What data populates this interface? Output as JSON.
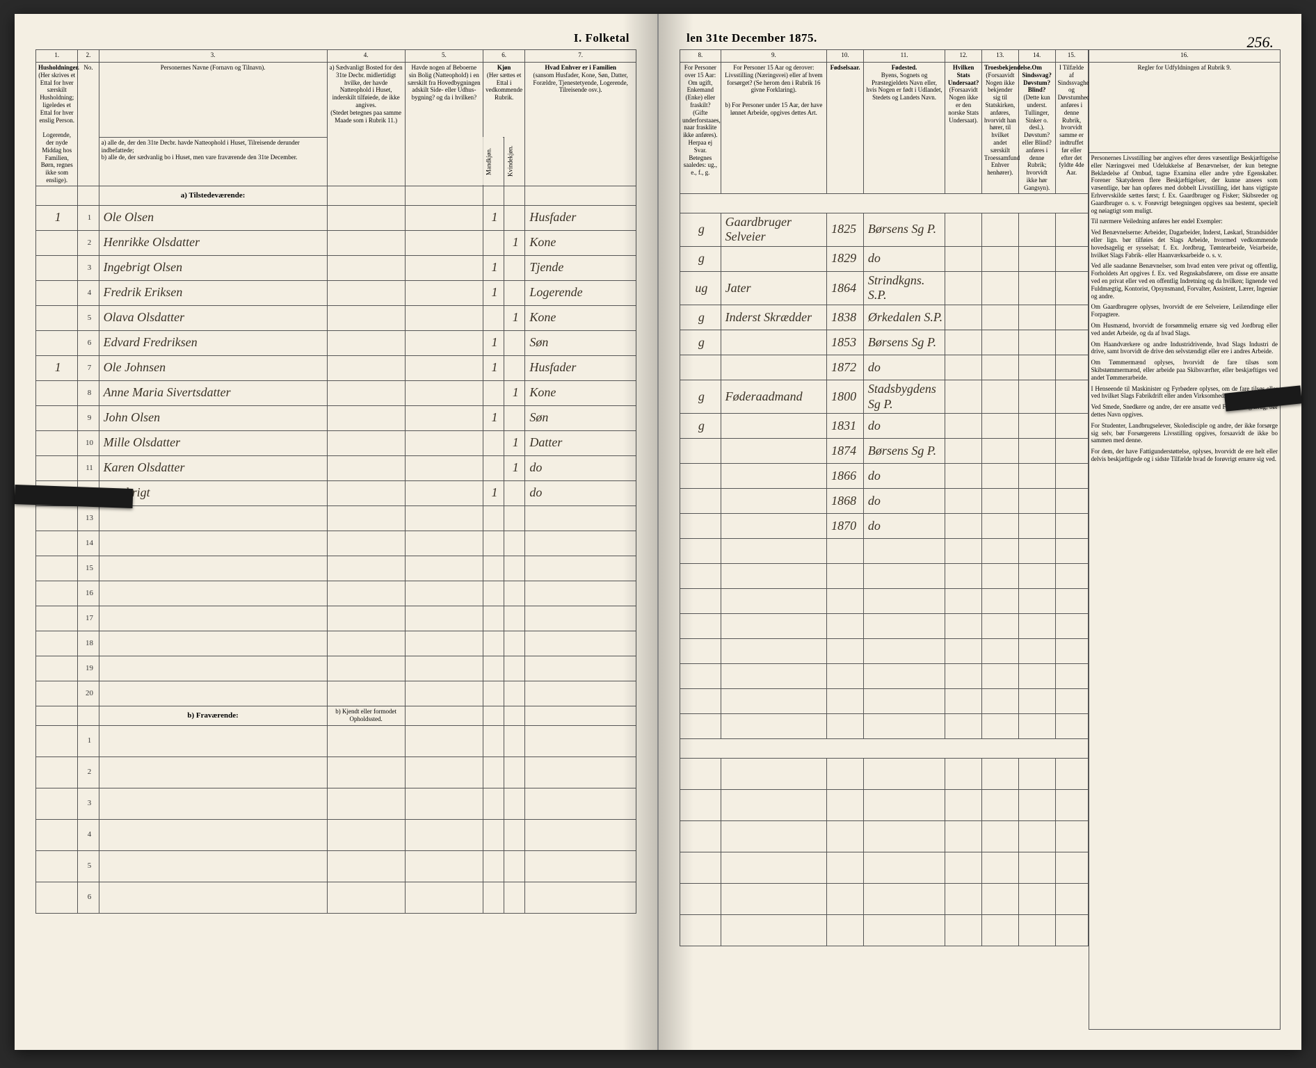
{
  "title_left": "I.  Folketal",
  "title_right": "len 31te December 1875.",
  "page_number": "256.",
  "columns_left": {
    "c1": "1.",
    "c2": "2.",
    "c3": "3.",
    "c4": "4.",
    "c5": "5.",
    "c6": "6.",
    "c7": "7."
  },
  "columns_right": {
    "c8": "8.",
    "c9": "9.",
    "c10": "10.",
    "c11": "11.",
    "c12": "12.",
    "c13": "13.",
    "c14": "14.",
    "c15": "15.",
    "c16": "16."
  },
  "headers_left": {
    "h1": "Husholdninger.",
    "h1_sub": "(Her skrives et Ettal for hver særskilt Husholdning; ligeledes et Ettal for hver enslig Person.",
    "h1_sub2": "Logerende, der nyde Middag hos Familien, Børn, regnes ikke som enslige).",
    "h2": "No.",
    "h3": "Personernes Navne (Fornavn og Tilnavn).",
    "h3_a": "a)  alle de, der den 31te Decbr. havde Natteophold i Huset, Tilreisende derunder indbefattede;",
    "h3_b": "b)  alle de, der sædvanlig bo i Huset, men vare fraværende den 31te December.",
    "h4": "a) Sædvanligt Bosted for den 31te Decbr. midlertidigt",
    "h4_sub": "(Stedet betegnes paa samme Maade som i Rubrik 11.)",
    "h4_sub2": "hvilke, der havde Natteophold i Huset, inderskilt tilføiede, de ikke angives.",
    "h5": "Havde nogen af Beboerne sin Bolig (Natteophold) i en særskilt fra Hovedbygningen adskilt Side- eller Udhus-bygning? og da i hvilken?",
    "h6": "Kjøn",
    "h6_sub": "(Her sættes et Ettal i vedkommende Rubrik.",
    "h6_m": "Mandkjøn.",
    "h6_k": "Kvindekjøn.",
    "h7": "Hvad Enhver er i Familien",
    "h7_sub": "(sansom Husfader, Kone, Søn, Datter, Forældre, Tjenestetyende, Logerende, Tilreisende osv.)."
  },
  "headers_right": {
    "h8": "For Personer over 15 Aar: Om ugift, Enkemand (Enke) eller fraskilt?",
    "h8_sub": "(Gifte underforstaaes, naar frasklite ikke anføres). Herpaa ej Svar. Betegnes saaledes: ug., e., f., g.",
    "h9": "For Personer 15 Aar og derover: Livsstilling (Næringsvei) eller af hvem forsørget? (Se herom den i Rubrik 16 givne Forklaring).",
    "h9_b": "b) For Personer under 15 Aar, der have lønnet Arbeide, opgives dettes Art.",
    "h10": "Fødselsaar.",
    "h11": "Fødested.",
    "h11_sub": "Byens, Sognets og Præstegjeldets Navn eller, hvis Nogen er født i Udlandet, Stedets og Landets Navn.",
    "h12": "Hvilken Stats Undersaat?",
    "h12_sub": "(Forsaavidt Nogen ikke er den norske Stats Undersaat).",
    "h13": "Troesbekjendelse.",
    "h13_sub": "(Forsaavidt Nogen ikke bekjender sig til Statskirken, anføres, hvorvidt han hører, til hvilket andet særskilt Troessamfund Enhver henhører).",
    "h14": "Om Sindssvag? Døvstum? Blind?",
    "h14_sub": "(Dette kun underst. Tullinger, Sinker o. desl.). Døvstum? eller Blind? anføres i denne Rubrik; hvorvidt ikke hør Gangsyn).",
    "h15": "I Tilfælde af Sindssvagheds og Døvstumhed anføres i denne Rubrik, hvorvidt samme er indtruffet før eller efter det fyldte 4de Aar.",
    "h16": "Regler for Udfyldningen af Rubrik 9."
  },
  "section_present": "a)  Tilstedeværende:",
  "section_absent": "b)  Fraværende:",
  "absent_col4": "b) Kjendt eller formodet Opholdssted.",
  "rows": [
    {
      "n": "1",
      "hh": "1",
      "name": "Ole Olsen",
      "m": "1",
      "fam": "Husfader",
      "ms": "g",
      "occ": "Gaardbruger Selveier",
      "year": "1825",
      "place": "Børsens Sg P."
    },
    {
      "n": "2",
      "hh": "",
      "name": "Henrikke Olsdatter",
      "k": "1",
      "fam": "Kone",
      "ms": "g",
      "occ": "",
      "year": "1829",
      "place": "do"
    },
    {
      "n": "3",
      "hh": "",
      "name": "Ingebrigt Olsen",
      "m": "1",
      "fam": "Tjende",
      "ms": "ug",
      "occ": "Jater",
      "year": "1864",
      "place": "Strindkgns. S.P."
    },
    {
      "n": "4",
      "hh": "",
      "name": "Fredrik Eriksen",
      "m": "1",
      "fam": "Logerende",
      "ms": "g",
      "occ": "Inderst Skrædder",
      "year": "1838",
      "place": "Ørkedalen S.P."
    },
    {
      "n": "5",
      "hh": "",
      "name": "Olava Olsdatter",
      "k": "1",
      "fam": "Kone",
      "ms": "g",
      "occ": "",
      "year": "1853",
      "place": "Børsens Sg P."
    },
    {
      "n": "6",
      "hh": "",
      "name": "Edvard Fredriksen",
      "m": "1",
      "fam": "Søn",
      "ms": "",
      "occ": "",
      "year": "1872",
      "place": "do"
    },
    {
      "n": "7",
      "hh": "1",
      "name": "Ole Johnsen",
      "m": "1",
      "fam": "Husfader",
      "ms": "g",
      "occ": "Føderaadmand",
      "year": "1800",
      "place": "Stadsbygdens Sg P."
    },
    {
      "n": "8",
      "hh": "",
      "name": "Anne Maria Sivertsdatter",
      "k": "1",
      "fam": "Kone",
      "ms": "g",
      "occ": "",
      "year": "1831",
      "place": "do"
    },
    {
      "n": "9",
      "hh": "",
      "name": "John Olsen",
      "m": "1",
      "fam": "Søn",
      "ms": "",
      "occ": "",
      "year": "1874",
      "place": "Børsens Sg P."
    },
    {
      "n": "10",
      "hh": "",
      "name": "Mille Olsdatter",
      "k": "1",
      "fam": "Datter",
      "ms": "",
      "occ": "",
      "year": "1866",
      "place": "do"
    },
    {
      "n": "11",
      "hh": "",
      "name": "Karen Olsdatter",
      "k": "1",
      "fam": "do",
      "ms": "",
      "occ": "",
      "year": "1868",
      "place": "do"
    },
    {
      "n": "12",
      "hh": "",
      "name": "Ingebrigt",
      "m": "1",
      "fam": "do",
      "ms": "",
      "occ": "",
      "year": "1870",
      "place": "do"
    }
  ],
  "empty_present": [
    "13",
    "14",
    "15",
    "16",
    "17",
    "18",
    "19",
    "20"
  ],
  "empty_absent": [
    "1",
    "2",
    "3",
    "4",
    "5",
    "6"
  ],
  "instructions": {
    "p1": "Personernes Livsstilling bør angives efter deres væsentlige Beskjæftigelse eller Næringsvei med Udelukkelse af Benævnelser, der kun betegne Beklædelse af Ombud, tagne Examina eller andre ydre Egenskaber. Forener Skatyderen flere Beskjæftigelser, der kunne ansees som væsentlige, bør han opføres med dobbelt Livsstilling, idet hans vigtigste Erhvervskilde sættes først; f. Ex. Gaardbruger og Fisker; Skibsreder og Gaardbruger o. s. v. Forøvrigt betegningen opgives saa bestemt, specielt og nøiagtigt som muligt.",
    "p2": "Til nærmere Veiledning anføres her endel Exempler:",
    "p3": "Ved Benævnelserne: Arbeider, Dagarbeider, Inderst, Løskarl, Strandsidder eller lign. bør tilføies det Slags Arbeide, hvormed vedkommende hovedsagelig er sysselsat; f. Ex. Jordbrug, Tømtearbeide, Veiarbeide, hvilket Slags Fabrik- eller Haanværksarbeide o. s. v.",
    "p4": "Ved alle saadanne Benævnelser, som hvad enten vere privat og offentlig, Forholdets Art opgives f. Ex. ved Regnskabsførere, om disse ere ansatte ved en privat eller ved en offentlig Indretning og da hvilken; lignende ved Fuldmægtig, Kontorist, Opsynsmand, Forvalter, Assistent, Lærer, Ingeniør og andre.",
    "p5": "Om Gaardbrugere oplyses, hvorvidt de ere Selveiere, Leilændinge eller Forpagtere.",
    "p6": "Om Husmænd, hvorvidt de forsømmelig ernære sig ved Jordbrug eller ved andet Arbeide, og da af hvad Slags.",
    "p7": "Om Haandværkere og andre Industridrivende, hvad Slags Industri de drive, samt hvorvidt de drive den selvstændigt eller ere i andres Arbeide.",
    "p8": "Om Tømmermænd oplyses, hvorvidt de fare tilsøs som Skibstømmermænd, eller arbeide paa Skibsværfter, eller beskjæftiges ved andet Tømmerarbeide.",
    "p9": "I Henseende til Maskinister og Fyrbødere oplyses, om de fare tilsøs eller ved hvilket Slags Fabrikdrift eller anden Virksomhedsgren de ere ansatte.",
    "p10": "Ved Smede, Snedkere og andre, der ere ansatte ved Fabriker og Brug, bør dettes Navn opgives.",
    "p11": "For Studenter, Landbrugselever, Skoledisciple og andre, der ikke forsørge sig selv, bør Forsørgerens Livsstilling opgives, forsaavidt de ikke bo sammen med denne.",
    "p12": "For dem, der have Fattigunderstøttelse, oplyses, hvorvidt de ere helt eller delvis beskjæftigede og i sidste Tilfælde hvad de forøvrigt ernære sig ved."
  },
  "colors": {
    "paper": "#f4efe3",
    "ink": "#3a3226",
    "border": "#555555",
    "cover": "#3a3530"
  }
}
